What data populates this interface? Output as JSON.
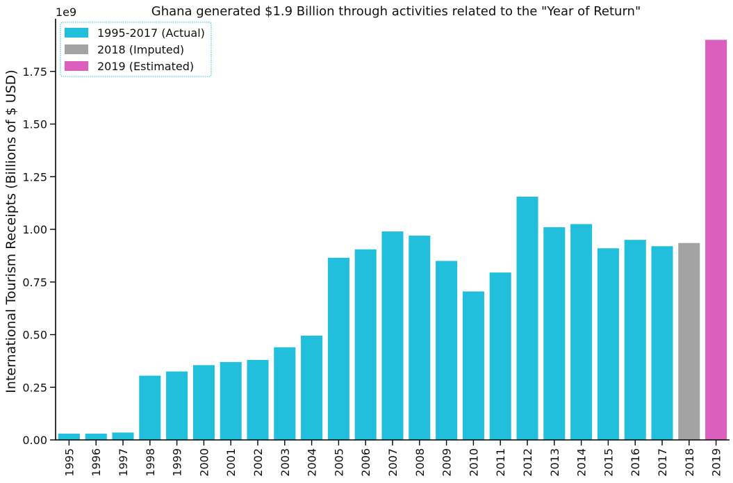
{
  "chart_data": {
    "type": "bar",
    "title": "Ghana generated $1.9 Billion through activities related to the \"Year of Return\"",
    "xlabel": "",
    "ylabel": "International Tourism Receipts (Billions of $ USD)",
    "offset_text": "1e9",
    "ylim": [
      0,
      2.0
    ],
    "yticks": [
      "0.00",
      "0.25",
      "0.50",
      "0.75",
      "1.00",
      "1.25",
      "1.50",
      "1.75"
    ],
    "ytick_values": [
      0,
      0.25,
      0.5,
      0.75,
      1.0,
      1.25,
      1.5,
      1.75
    ],
    "categories": [
      "1995",
      "1996",
      "1997",
      "1998",
      "1999",
      "2000",
      "2001",
      "2002",
      "2003",
      "2004",
      "2005",
      "2006",
      "2007",
      "2008",
      "2009",
      "2010",
      "2011",
      "2012",
      "2013",
      "2014",
      "2015",
      "2016",
      "2017",
      "2018",
      "2019"
    ],
    "values": [
      0.03,
      0.03,
      0.035,
      0.305,
      0.325,
      0.355,
      0.37,
      0.38,
      0.44,
      0.495,
      0.865,
      0.905,
      0.99,
      0.97,
      0.85,
      0.705,
      0.795,
      1.155,
      1.01,
      1.025,
      0.91,
      0.95,
      0.92,
      0.935,
      1.9
    ],
    "groups": [
      "actual",
      "actual",
      "actual",
      "actual",
      "actual",
      "actual",
      "actual",
      "actual",
      "actual",
      "actual",
      "actual",
      "actual",
      "actual",
      "actual",
      "actual",
      "actual",
      "actual",
      "actual",
      "actual",
      "actual",
      "actual",
      "actual",
      "actual",
      "imputed",
      "estimated"
    ],
    "legend": {
      "placement": "top-left",
      "items": [
        {
          "key": "actual",
          "label": "1995-2017 (Actual)",
          "color": "#22bfdc"
        },
        {
          "key": "imputed",
          "label": "2018 (Imputed)",
          "color": "#a3a3a3"
        },
        {
          "key": "estimated",
          "label": "2019 (Estimated)",
          "color": "#db60bd"
        }
      ]
    },
    "grid": false
  }
}
